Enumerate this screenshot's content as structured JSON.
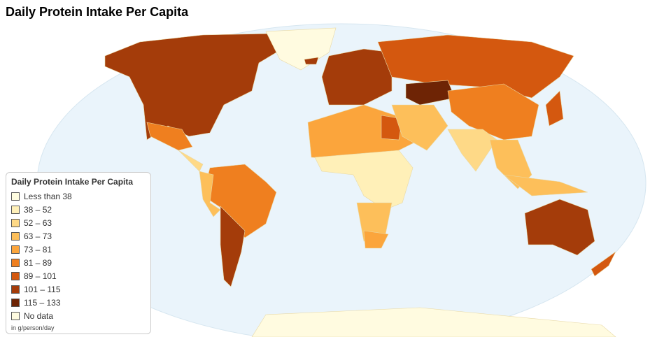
{
  "title": "Daily Protein Intake Per Capita",
  "legend": {
    "title": "Daily Protein Intake Per Capita",
    "items": [
      {
        "label": "Less than 38",
        "color": "#fffde0"
      },
      {
        "label": "38 – 52",
        "color": "#fff0b8"
      },
      {
        "label": "52 – 63",
        "color": "#fed987"
      },
      {
        "label": "63 – 73",
        "color": "#fdbf5a"
      },
      {
        "label": "73 – 81",
        "color": "#fba53c"
      },
      {
        "label": "81 – 89",
        "color": "#ef7f1f"
      },
      {
        "label": "89 – 101",
        "color": "#d4580f"
      },
      {
        "label": "101 – 115",
        "color": "#a43c0a"
      },
      {
        "label": "115 – 133",
        "color": "#6e2405"
      },
      {
        "label": "No data",
        "color": "#fffbe0"
      }
    ],
    "note": "in g/person/day"
  }
}
